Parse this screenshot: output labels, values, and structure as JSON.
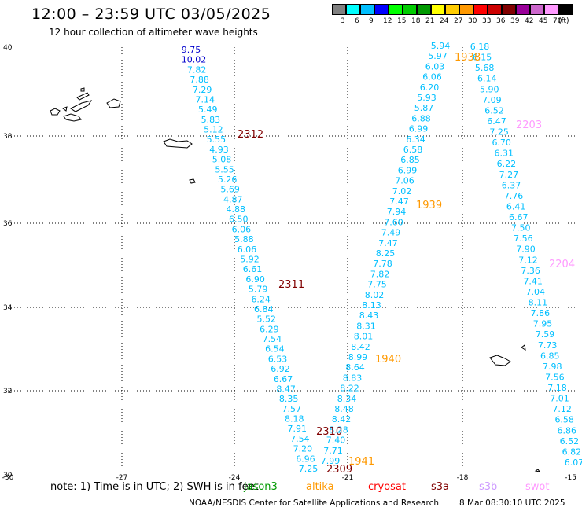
{
  "header": {
    "title": "12:00 – 23:59 UTC 03/05/2025",
    "subtitle": "12 hour collection of altimeter wave heights"
  },
  "legend": {
    "colors": [
      "#808080",
      "#00ffff",
      "#00bfff",
      "#0000ff",
      "#00ff00",
      "#00cc00",
      "#009900",
      "#ffff00",
      "#ffcc00",
      "#ff9900",
      "#ff0000",
      "#cc0000",
      "#800000",
      "#990099",
      "#cc66cc",
      "#ff99ff",
      "#000000"
    ],
    "labels": [
      "3",
      "6",
      "9",
      "12",
      "15",
      "18",
      "21",
      "24",
      "27",
      "30",
      "33",
      "36",
      "39",
      "42",
      "45",
      "70",
      "(ft)"
    ]
  },
  "axes": {
    "lon_ticks": [
      "-30",
      "-27",
      "-24",
      "-21",
      "-18",
      "-15"
    ],
    "lat_ticks": [
      "30",
      "32",
      "34",
      "36",
      "38",
      "40"
    ]
  },
  "passes": [
    {
      "label": "2312",
      "color": "#800000"
    },
    {
      "label": "2311",
      "color": "#800000"
    },
    {
      "label": "2310",
      "color": "#800000"
    },
    {
      "label": "2309",
      "color": "#800000"
    },
    {
      "label": "1938",
      "color": "#ff9900"
    },
    {
      "label": "1939",
      "color": "#ff9900"
    },
    {
      "label": "1940",
      "color": "#ff9900"
    },
    {
      "label": "1941",
      "color": "#ff9900"
    },
    {
      "label": "2203",
      "color": "#ff99ff"
    },
    {
      "label": "2204",
      "color": "#ff99ff"
    }
  ],
  "track_s3a": {
    "color": "#00bfff",
    "values": [
      "9.75",
      "10.02",
      "7.82",
      "7.88",
      "7.29",
      "7.14",
      "5.49",
      "5.83",
      "5.12",
      "5.55",
      "4.93",
      "5.08",
      "5.55",
      "5.26",
      "5.69",
      "4.87",
      "4.88",
      "6.50",
      "6.06",
      "5.88",
      "6.06",
      "5.92",
      "6.61",
      "6.90",
      "5.79",
      "6.24",
      "6.84",
      "5.52",
      "6.29",
      "7.54",
      "6.54",
      "6.53",
      "6.92",
      "6.67",
      "8.47",
      "8.35",
      "7.57",
      "8.18",
      "7.91",
      "7.54",
      "7.20",
      "6.96",
      "7.25"
    ]
  },
  "track_altika": {
    "color": "#00bfff",
    "values": [
      "5.94",
      "5.97",
      "6.03",
      "6.06",
      "6.20",
      "5.93",
      "5.87",
      "6.88",
      "6.99",
      "6.34",
      "6.58",
      "6.85",
      "6.99",
      "7.06",
      "7.02",
      "7.47",
      "7.94",
      "7.60",
      "7.49",
      "7.47",
      "8.25",
      "7.78",
      "7.82",
      "7.75",
      "8.02",
      "8.13",
      "8.43",
      "8.31",
      "8.01",
      "8.42",
      "8.99",
      "8.64",
      "8.83",
      "8.22",
      "8.34",
      "8.48",
      "8.42",
      "8.28",
      "7.40",
      "7.71",
      "7.99"
    ]
  },
  "track_swot": {
    "color": "#00bfff",
    "values": [
      "6.18",
      "6.15",
      "5.68",
      "6.14",
      "5.90",
      "7.09",
      "6.52",
      "6.47",
      "7.25",
      "6.70",
      "6.31",
      "6.22",
      "7.27",
      "6.37",
      "7.76",
      "6.41",
      "6.67",
      "7.50",
      "7.56",
      "7.90",
      "7.12",
      "7.36",
      "7.41",
      "7.04",
      "8.11",
      "7.86",
      "7.95",
      "7.59",
      "7.73",
      "6.85",
      "7.98",
      "7.56",
      "7.18",
      "7.01",
      "7.12",
      "6.58",
      "6.86",
      "6.52",
      "6.82",
      "6.07"
    ]
  },
  "footer": {
    "note": "note:  1) Time is in UTC; 2) SWH is in feet",
    "satellites": [
      {
        "name": "jason3",
        "color": "#009900"
      },
      {
        "name": "altika",
        "color": "#ff9900"
      },
      {
        "name": "cryosat",
        "color": "#ff0000"
      },
      {
        "name": "s3a",
        "color": "#800000"
      },
      {
        "name": "s3b",
        "color": "#cc99ff"
      },
      {
        "name": "swot",
        "color": "#ff99ff"
      }
    ],
    "credit": "NOAA/NESDIS Center for Satellite Applications and Research",
    "timestamp": "8 Mar 08:30:10 UTC 2025"
  }
}
